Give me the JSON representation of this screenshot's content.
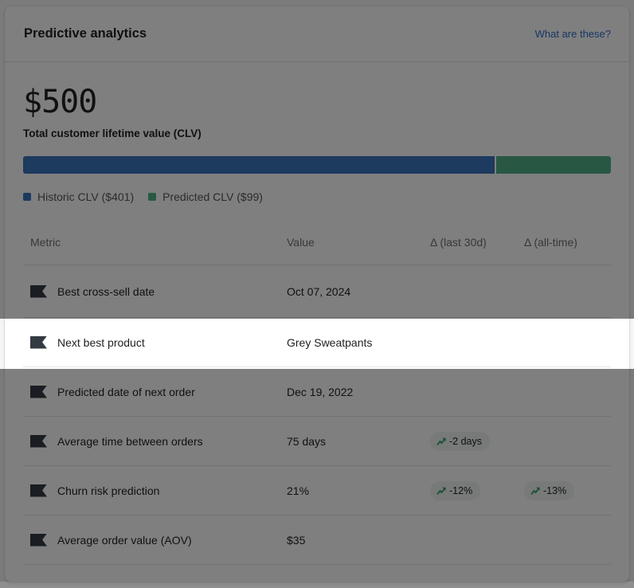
{
  "page": {
    "background": "#f6f6f7"
  },
  "overlay": {
    "color": "rgba(0,0,0,0.5)",
    "spotlight_row": "Next best product"
  },
  "card": {
    "header": {
      "title": "Predictive analytics",
      "help_link": "What are these?",
      "link_color": "#2c6ecb"
    },
    "clv": {
      "amount": "$500",
      "caption": "Total customer lifetime value (CLV)",
      "bar": {
        "historic_value": 401,
        "predicted_value": 99,
        "total": 500,
        "historic_pct": 80.2,
        "historic_color": "#3a74be",
        "predicted_color": "#50b088"
      },
      "legend": [
        {
          "label": "Historic CLV ($401)",
          "color": "#3a74be"
        },
        {
          "label": "Predicted CLV ($99)",
          "color": "#50b088"
        }
      ]
    },
    "table": {
      "columns": [
        "Metric",
        "Value",
        "Δ (last 30d)",
        "Δ (all-time)"
      ],
      "rows": [
        {
          "metric": "Best cross-sell date",
          "value": "Oct 07, 2024",
          "delta_30d": "",
          "delta_all_time": "",
          "highlighted": false
        },
        {
          "metric": "Next best product",
          "value": "Grey Sweatpants",
          "delta_30d": "",
          "delta_all_time": "",
          "highlighted": true
        },
        {
          "metric": "Predicted date of next order",
          "value": "Dec 19, 2022",
          "delta_30d": "",
          "delta_all_time": "",
          "highlighted": false
        },
        {
          "metric": "Average time between orders",
          "value": "75 days",
          "delta_30d": "-2 days",
          "delta_all_time": "",
          "highlighted": false
        },
        {
          "metric": "Churn risk prediction",
          "value": "21%",
          "delta_30d": "-12%",
          "delta_all_time": "-13%",
          "highlighted": false
        },
        {
          "metric": "Average order value (AOV)",
          "value": "$35",
          "delta_30d": "",
          "delta_all_time": "",
          "highlighted": false
        }
      ],
      "badge": {
        "background": "#f1f2f3",
        "arrow_color": "#2f9e63",
        "trend_icon": "trend-up-arrow"
      }
    }
  }
}
